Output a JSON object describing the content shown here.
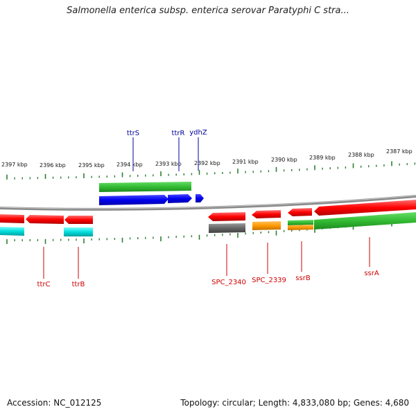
{
  "title": "Salmonella enterica subsp. enterica serovar Paratyphi C stra...",
  "footer": {
    "accession": "Accession: NC_012125",
    "summary": "Topology: circular; Length: 4,833,080 bp; Genes: 4,680"
  },
  "colors": {
    "backbone": "#808080",
    "tick": "#2e7d32",
    "red": "#ff0000",
    "green": "#33bb33",
    "blue": "#0000ee",
    "cyan": "#00dddd",
    "gray": "#666666",
    "orange": "#ff9900",
    "label_top": "#000099",
    "label_bottom": "#cc0000"
  },
  "ruler": [
    "2397 kbp",
    "2396 kbp",
    "2395 kbp",
    "2394 kbp",
    "2393 kbp",
    "2392 kbp",
    "2391 kbp",
    "2390 kbp",
    "2389 kbp",
    "2388 kbp",
    "2387 kbp"
  ],
  "gene_labels_top": [
    "ttrS",
    "ttrR",
    "ydhZ"
  ],
  "gene_labels_bottom": [
    "ttrC",
    "ttrB",
    "SPC_2340",
    "SPC_2339",
    "ssrB",
    "ssrA"
  ]
}
